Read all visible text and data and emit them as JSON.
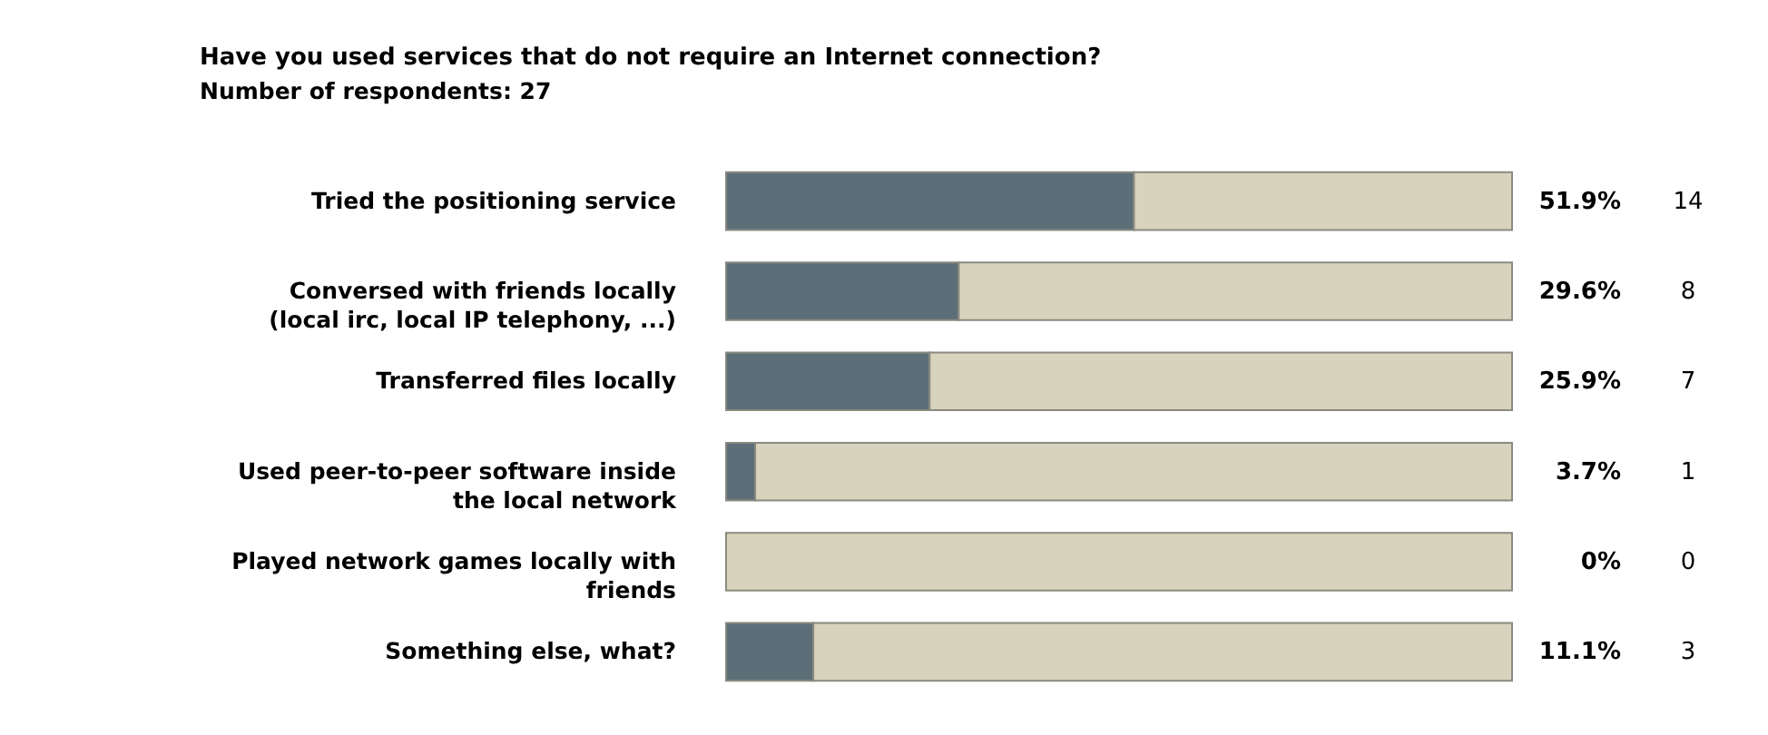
{
  "chart_data": {
    "type": "bar",
    "orientation": "horizontal",
    "stacked": true,
    "title": "Have you used services that do not require an Internet connection?",
    "subtitle": "Number of respondents: 27",
    "categories": [
      "Tried the positioning service",
      "Conversed with friends locally\n(local irc, local IP telephony, ...)",
      "Transferred files locally",
      "Used peer-to-peer software inside\nthe local network",
      "Played network games locally with\nfriends",
      "Something else, what?"
    ],
    "series": [
      {
        "color": "#5c6f79",
        "values": [
          51.9,
          29.6,
          25.9,
          3.7,
          0,
          11.1
        ],
        "value_labels": [
          "51.9%",
          "29.6%",
          "25.9%",
          "3.7%",
          "0%",
          "11.1%"
        ]
      },
      {
        "color": "#d8d3bc",
        "values": [
          48.1,
          70.4,
          74.1,
          96.3,
          100,
          88.9
        ]
      }
    ],
    "annotations": [
      "14",
      "8",
      "7",
      "1",
      "0",
      "3"
    ],
    "xlim": [
      0,
      100
    ],
    "tick_labels": "y",
    "grid": false,
    "legend": false
  }
}
